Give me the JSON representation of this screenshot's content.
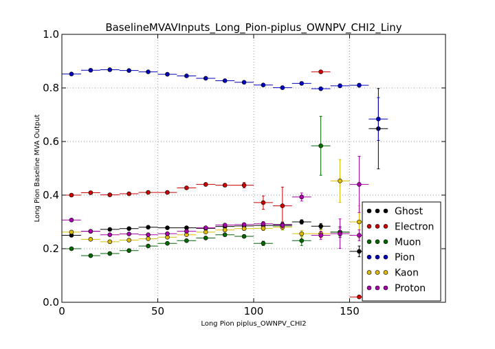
{
  "chart_data": {
    "type": "scatter",
    "title": "BaselineMVAVInputs_Long_Pion-piplus_OWNPV_CHI2_Liny",
    "xlabel": "Long Pion piplus_OWNPV_CHI2",
    "ylabel": "Long Pion Baseline MVA Output",
    "xlim": [
      0,
      200
    ],
    "ylim": [
      0.0,
      1.0
    ],
    "xticks": [
      0,
      50,
      100,
      150
    ],
    "yticks": [
      0.0,
      0.2,
      0.4,
      0.6,
      0.8,
      1.0
    ],
    "xtick_labels": [
      "0",
      "50",
      "100",
      "150"
    ],
    "ytick_labels": [
      "0.0",
      "0.2",
      "0.4",
      "0.6",
      "0.8",
      "1.0"
    ],
    "bin_halfwidth": 5,
    "grid": true,
    "legend_position": "bottom-right",
    "series": [
      {
        "name": "Ghost",
        "color": "#000000",
        "points": [
          {
            "x": 5,
            "y": 0.25,
            "err": 0.005
          },
          {
            "x": 15,
            "y": 0.265,
            "err": 0.005
          },
          {
            "x": 25,
            "y": 0.272,
            "err": 0.005
          },
          {
            "x": 35,
            "y": 0.275,
            "err": 0.005
          },
          {
            "x": 45,
            "y": 0.28,
            "err": 0.005
          },
          {
            "x": 55,
            "y": 0.278,
            "err": 0.005
          },
          {
            "x": 65,
            "y": 0.278,
            "err": 0.005
          },
          {
            "x": 75,
            "y": 0.276,
            "err": 0.005
          },
          {
            "x": 85,
            "y": 0.283,
            "err": 0.006
          },
          {
            "x": 95,
            "y": 0.285,
            "err": 0.006
          },
          {
            "x": 105,
            "y": 0.287,
            "err": 0.007
          },
          {
            "x": 115,
            "y": 0.29,
            "err": 0.008
          },
          {
            "x": 125,
            "y": 0.3,
            "err": 0.008
          },
          {
            "x": 135,
            "y": 0.284,
            "err": 0.01
          },
          {
            "x": 145,
            "y": 0.262,
            "err": 0.02
          },
          {
            "x": 155,
            "y": 0.19,
            "err": 0.02
          },
          {
            "x": 165,
            "y": 0.648,
            "err": 0.15
          }
        ]
      },
      {
        "name": "Electron",
        "color": "#cc0000",
        "points": [
          {
            "x": 5,
            "y": 0.4,
            "err": 0.005
          },
          {
            "x": 15,
            "y": 0.409,
            "err": 0.005
          },
          {
            "x": 25,
            "y": 0.401,
            "err": 0.005
          },
          {
            "x": 35,
            "y": 0.405,
            "err": 0.005
          },
          {
            "x": 45,
            "y": 0.41,
            "err": 0.005
          },
          {
            "x": 55,
            "y": 0.41,
            "err": 0.005
          },
          {
            "x": 65,
            "y": 0.427,
            "err": 0.005
          },
          {
            "x": 75,
            "y": 0.44,
            "err": 0.006
          },
          {
            "x": 85,
            "y": 0.437,
            "err": 0.006
          },
          {
            "x": 95,
            "y": 0.437,
            "err": 0.01
          },
          {
            "x": 105,
            "y": 0.372,
            "err": 0.025
          },
          {
            "x": 115,
            "y": 0.36,
            "err": 0.07
          },
          {
            "x": 135,
            "y": 0.86,
            "err": 0.004
          },
          {
            "x": 155,
            "y": 0.02,
            "err": 0.002
          }
        ]
      },
      {
        "name": "Muon",
        "color": "#006600",
        "points": [
          {
            "x": 5,
            "y": 0.2,
            "err": 0.005
          },
          {
            "x": 15,
            "y": 0.174,
            "err": 0.005
          },
          {
            "x": 25,
            "y": 0.182,
            "err": 0.005
          },
          {
            "x": 35,
            "y": 0.193,
            "err": 0.005
          },
          {
            "x": 45,
            "y": 0.21,
            "err": 0.005
          },
          {
            "x": 55,
            "y": 0.22,
            "err": 0.005
          },
          {
            "x": 65,
            "y": 0.23,
            "err": 0.005
          },
          {
            "x": 75,
            "y": 0.24,
            "err": 0.005
          },
          {
            "x": 85,
            "y": 0.252,
            "err": 0.006
          },
          {
            "x": 95,
            "y": 0.246,
            "err": 0.006
          },
          {
            "x": 105,
            "y": 0.22,
            "err": 0.008
          },
          {
            "x": 115,
            "y": 0.285,
            "err": 0.015
          },
          {
            "x": 125,
            "y": 0.23,
            "err": 0.018
          },
          {
            "x": 135,
            "y": 0.584,
            "err": 0.11
          },
          {
            "x": 145,
            "y": 0.262,
            "err": 0.015
          }
        ]
      },
      {
        "name": "Pion",
        "color": "#0000bb",
        "points": [
          {
            "x": 5,
            "y": 0.852,
            "err": 0.003
          },
          {
            "x": 15,
            "y": 0.866,
            "err": 0.003
          },
          {
            "x": 25,
            "y": 0.868,
            "err": 0.003
          },
          {
            "x": 35,
            "y": 0.865,
            "err": 0.003
          },
          {
            "x": 45,
            "y": 0.86,
            "err": 0.003
          },
          {
            "x": 55,
            "y": 0.851,
            "err": 0.003
          },
          {
            "x": 65,
            "y": 0.845,
            "err": 0.003
          },
          {
            "x": 75,
            "y": 0.836,
            "err": 0.003
          },
          {
            "x": 85,
            "y": 0.827,
            "err": 0.003
          },
          {
            "x": 95,
            "y": 0.821,
            "err": 0.003
          },
          {
            "x": 105,
            "y": 0.811,
            "err": 0.003
          },
          {
            "x": 115,
            "y": 0.801,
            "err": 0.004
          },
          {
            "x": 125,
            "y": 0.817,
            "err": 0.005
          },
          {
            "x": 135,
            "y": 0.797,
            "err": 0.005
          },
          {
            "x": 145,
            "y": 0.808,
            "err": 0.007
          },
          {
            "x": 155,
            "y": 0.81,
            "err": 0.007
          },
          {
            "x": 165,
            "y": 0.684,
            "err": 0.08
          }
        ]
      },
      {
        "name": "Kaon",
        "color": "#ddbb00",
        "points": [
          {
            "x": 5,
            "y": 0.262,
            "err": 0.005
          },
          {
            "x": 15,
            "y": 0.235,
            "err": 0.005
          },
          {
            "x": 25,
            "y": 0.226,
            "err": 0.005
          },
          {
            "x": 35,
            "y": 0.232,
            "err": 0.005
          },
          {
            "x": 45,
            "y": 0.237,
            "err": 0.005
          },
          {
            "x": 55,
            "y": 0.243,
            "err": 0.005
          },
          {
            "x": 65,
            "y": 0.252,
            "err": 0.005
          },
          {
            "x": 75,
            "y": 0.262,
            "err": 0.005
          },
          {
            "x": 85,
            "y": 0.27,
            "err": 0.006
          },
          {
            "x": 95,
            "y": 0.275,
            "err": 0.006
          },
          {
            "x": 105,
            "y": 0.276,
            "err": 0.008
          },
          {
            "x": 115,
            "y": 0.28,
            "err": 0.01
          },
          {
            "x": 125,
            "y": 0.256,
            "err": 0.012
          },
          {
            "x": 135,
            "y": 0.256,
            "err": 0.015
          },
          {
            "x": 145,
            "y": 0.453,
            "err": 0.08
          },
          {
            "x": 155,
            "y": 0.3,
            "err": 0.06
          }
        ]
      },
      {
        "name": "Proton",
        "color": "#aa00aa",
        "points": [
          {
            "x": 5,
            "y": 0.307,
            "err": 0.005
          },
          {
            "x": 15,
            "y": 0.265,
            "err": 0.005
          },
          {
            "x": 25,
            "y": 0.252,
            "err": 0.005
          },
          {
            "x": 35,
            "y": 0.255,
            "err": 0.005
          },
          {
            "x": 45,
            "y": 0.252,
            "err": 0.005
          },
          {
            "x": 55,
            "y": 0.256,
            "err": 0.005
          },
          {
            "x": 65,
            "y": 0.265,
            "err": 0.005
          },
          {
            "x": 75,
            "y": 0.278,
            "err": 0.005
          },
          {
            "x": 85,
            "y": 0.288,
            "err": 0.006
          },
          {
            "x": 95,
            "y": 0.29,
            "err": 0.006
          },
          {
            "x": 105,
            "y": 0.293,
            "err": 0.008
          },
          {
            "x": 115,
            "y": 0.288,
            "err": 0.01
          },
          {
            "x": 125,
            "y": 0.393,
            "err": 0.015
          },
          {
            "x": 135,
            "y": 0.25,
            "err": 0.015
          },
          {
            "x": 145,
            "y": 0.256,
            "err": 0.055
          },
          {
            "x": 155,
            "y": 0.25,
            "err": 0.02
          },
          {
            "x": 155,
            "y": 0.44,
            "err": 0.105
          }
        ]
      }
    ]
  }
}
